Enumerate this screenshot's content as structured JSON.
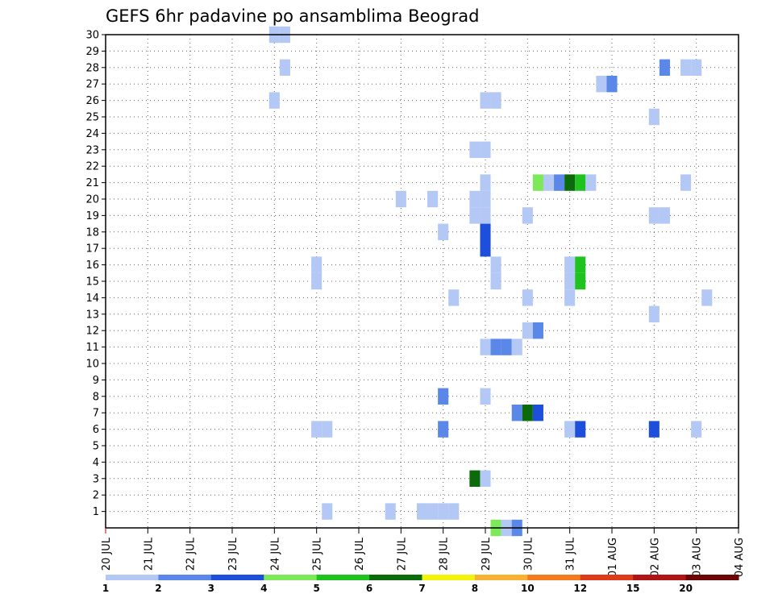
{
  "chart_data": {
    "type": "heatmap",
    "title": "GEFS 6hr padavine po ansamblima Beograd",
    "xlabel": "",
    "ylabel": "",
    "x_tick_labels": [
      "20 JUL",
      "21 JUL",
      "22 JUL",
      "23 JUL",
      "24 JUL",
      "25 JUL",
      "26 JUL",
      "27 JUL",
      "28 JUL",
      "29 JUL",
      "30 JUL",
      "31 JUL",
      "01 AUG",
      "02 AUG",
      "03 AUG",
      "04 AUG"
    ],
    "y_tick_labels": [
      "1",
      "2",
      "3",
      "4",
      "5",
      "6",
      "7",
      "8",
      "9",
      "10",
      "11",
      "12",
      "13",
      "14",
      "15",
      "16",
      "17",
      "18",
      "19",
      "20",
      "21",
      "22",
      "23",
      "24",
      "25",
      "26",
      "27",
      "28",
      "29",
      "30"
    ],
    "xlim_days": [
      0,
      15
    ],
    "ylim": [
      0,
      30
    ],
    "grid": true,
    "colorbar": {
      "labels": [
        "1",
        "2",
        "3",
        "4",
        "5",
        "6",
        "7",
        "8",
        "10",
        "12",
        "15",
        "20"
      ],
      "colors": [
        "#b3c8f5",
        "#5b87e8",
        "#1e4fdb",
        "#7de85a",
        "#1fc21f",
        "#0b6b0b",
        "#f2f20a",
        "#f7b233",
        "#f47a1f",
        "#de3b1a",
        "#b01515",
        "#6b0505"
      ]
    },
    "cells": [
      {
        "date": "24 JUL",
        "hour": 0,
        "member": 30,
        "level": 1
      },
      {
        "date": "24 JUL",
        "hour": 6,
        "member": 30,
        "level": 1
      },
      {
        "date": "24 JUL",
        "hour": 6,
        "member": 28,
        "level": 1
      },
      {
        "date": "02 AUG",
        "hour": 6,
        "member": 28,
        "level": 2
      },
      {
        "date": "02 AUG",
        "hour": 18,
        "member": 28,
        "level": 1
      },
      {
        "date": "03 AUG",
        "hour": 0,
        "member": 28,
        "level": 1
      },
      {
        "date": "31 JUL",
        "hour": 18,
        "member": 27,
        "level": 1
      },
      {
        "date": "01 AUG",
        "hour": 0,
        "member": 27,
        "level": 2
      },
      {
        "date": "24 JUL",
        "hour": 0,
        "member": 26,
        "level": 1
      },
      {
        "date": "29 JUL",
        "hour": 0,
        "member": 26,
        "level": 1
      },
      {
        "date": "29 JUL",
        "hour": 6,
        "member": 26,
        "level": 1
      },
      {
        "date": "02 AUG",
        "hour": 0,
        "member": 25,
        "level": 1
      },
      {
        "date": "28 JUL",
        "hour": 18,
        "member": 23,
        "level": 1
      },
      {
        "date": "29 JUL",
        "hour": 0,
        "member": 23,
        "level": 1
      },
      {
        "date": "29 JUL",
        "hour": 0,
        "member": 21,
        "level": 1
      },
      {
        "date": "30 JUL",
        "hour": 6,
        "member": 21,
        "level": 4
      },
      {
        "date": "30 JUL",
        "hour": 12,
        "member": 21,
        "level": 1
      },
      {
        "date": "30 JUL",
        "hour": 18,
        "member": 21,
        "level": 2
      },
      {
        "date": "31 JUL",
        "hour": 0,
        "member": 21,
        "level": 6
      },
      {
        "date": "31 JUL",
        "hour": 6,
        "member": 21,
        "level": 5
      },
      {
        "date": "31 JUL",
        "hour": 12,
        "member": 21,
        "level": 1
      },
      {
        "date": "02 AUG",
        "hour": 18,
        "member": 21,
        "level": 1
      },
      {
        "date": "27 JUL",
        "hour": 0,
        "member": 20,
        "level": 1
      },
      {
        "date": "27 JUL",
        "hour": 18,
        "member": 20,
        "level": 1
      },
      {
        "date": "28 JUL",
        "hour": 18,
        "member": 20,
        "level": 1
      },
      {
        "date": "29 JUL",
        "hour": 0,
        "member": 20,
        "level": 1
      },
      {
        "date": "28 JUL",
        "hour": 18,
        "member": 19,
        "level": 1
      },
      {
        "date": "29 JUL",
        "hour": 0,
        "member": 19,
        "level": 1
      },
      {
        "date": "30 JUL",
        "hour": 0,
        "member": 19,
        "level": 1
      },
      {
        "date": "02 AUG",
        "hour": 0,
        "member": 19,
        "level": 1
      },
      {
        "date": "02 AUG",
        "hour": 6,
        "member": 19,
        "level": 1
      },
      {
        "date": "28 JUL",
        "hour": 0,
        "member": 18,
        "level": 1
      },
      {
        "date": "29 JUL",
        "hour": 0,
        "member": 18,
        "level": 3
      },
      {
        "date": "29 JUL",
        "hour": 0,
        "member": 17,
        "level": 3
      },
      {
        "date": "25 JUL",
        "hour": 0,
        "member": 16,
        "level": 1
      },
      {
        "date": "25 JUL",
        "hour": 0,
        "member": 15,
        "level": 1
      },
      {
        "date": "29 JUL",
        "hour": 6,
        "member": 16,
        "level": 1
      },
      {
        "date": "29 JUL",
        "hour": 6,
        "member": 15,
        "level": 1
      },
      {
        "date": "31 JUL",
        "hour": 0,
        "member": 16,
        "level": 1
      },
      {
        "date": "31 JUL",
        "hour": 6,
        "member": 16,
        "level": 5
      },
      {
        "date": "31 JUL",
        "hour": 0,
        "member": 15,
        "level": 1
      },
      {
        "date": "31 JUL",
        "hour": 6,
        "member": 15,
        "level": 5
      },
      {
        "date": "28 JUL",
        "hour": 6,
        "member": 14,
        "level": 1
      },
      {
        "date": "30 JUL",
        "hour": 0,
        "member": 14,
        "level": 1
      },
      {
        "date": "31 JUL",
        "hour": 0,
        "member": 14,
        "level": 1
      },
      {
        "date": "03 AUG",
        "hour": 6,
        "member": 14,
        "level": 1
      },
      {
        "date": "02 AUG",
        "hour": 0,
        "member": 13,
        "level": 1
      },
      {
        "date": "30 JUL",
        "hour": 0,
        "member": 12,
        "level": 1
      },
      {
        "date": "30 JUL",
        "hour": 6,
        "member": 12,
        "level": 2
      },
      {
        "date": "29 JUL",
        "hour": 0,
        "member": 11,
        "level": 1
      },
      {
        "date": "29 JUL",
        "hour": 6,
        "member": 11,
        "level": 2
      },
      {
        "date": "29 JUL",
        "hour": 12,
        "member": 11,
        "level": 2
      },
      {
        "date": "29 JUL",
        "hour": 18,
        "member": 11,
        "level": 1
      },
      {
        "date": "28 JUL",
        "hour": 0,
        "member": 8,
        "level": 2
      },
      {
        "date": "29 JUL",
        "hour": 0,
        "member": 8,
        "level": 1
      },
      {
        "date": "29 JUL",
        "hour": 18,
        "member": 7,
        "level": 2
      },
      {
        "date": "30 JUL",
        "hour": 0,
        "member": 7,
        "level": 6
      },
      {
        "date": "30 JUL",
        "hour": 6,
        "member": 7,
        "level": 3
      },
      {
        "date": "25 JUL",
        "hour": 0,
        "member": 6,
        "level": 1
      },
      {
        "date": "25 JUL",
        "hour": 6,
        "member": 6,
        "level": 1
      },
      {
        "date": "28 JUL",
        "hour": 0,
        "member": 6,
        "level": 2
      },
      {
        "date": "31 JUL",
        "hour": 0,
        "member": 6,
        "level": 1
      },
      {
        "date": "31 JUL",
        "hour": 6,
        "member": 6,
        "level": 3
      },
      {
        "date": "02 AUG",
        "hour": 0,
        "member": 6,
        "level": 3
      },
      {
        "date": "03 AUG",
        "hour": 0,
        "member": 6,
        "level": 1
      },
      {
        "date": "28 JUL",
        "hour": 18,
        "member": 3,
        "level": 6
      },
      {
        "date": "29 JUL",
        "hour": 0,
        "member": 3,
        "level": 1
      },
      {
        "date": "25 JUL",
        "hour": 6,
        "member": 1,
        "level": 1
      },
      {
        "date": "26 JUL",
        "hour": 18,
        "member": 1,
        "level": 1
      },
      {
        "date": "27 JUL",
        "hour": 12,
        "member": 1,
        "level": 1
      },
      {
        "date": "27 JUL",
        "hour": 18,
        "member": 1,
        "level": 1
      },
      {
        "date": "28 JUL",
        "hour": 0,
        "member": 1,
        "level": 1
      },
      {
        "date": "28 JUL",
        "hour": 6,
        "member": 1,
        "level": 1
      },
      {
        "date": "29 JUL",
        "hour": 6,
        "member": 0,
        "level": 4
      },
      {
        "date": "29 JUL",
        "hour": 12,
        "member": 0,
        "level": 1
      },
      {
        "date": "29 JUL",
        "hour": 18,
        "member": 0,
        "level": 2
      }
    ]
  }
}
